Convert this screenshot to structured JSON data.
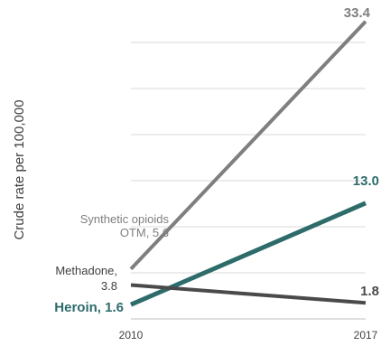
{
  "chart_data": {
    "type": "line",
    "x": [
      "2010",
      "2017"
    ],
    "ylabel": "Crude rate per 100,000",
    "ylim": [
      0,
      35
    ],
    "grid": true,
    "series": [
      {
        "name": "Synthetic opioids OTM",
        "values": [
          5.6,
          33.4
        ],
        "color": "#7f7f7f",
        "start_label": [
          "Synthetic opioids",
          "OTM, 5.6"
        ],
        "end_label": "33.4"
      },
      {
        "name": "Heroin",
        "values": [
          1.6,
          13.0
        ],
        "color": "#2e6b6b",
        "start_label": [
          "Heroin, 1.6"
        ],
        "end_label": "13.0"
      },
      {
        "name": "Methadone",
        "values": [
          3.8,
          1.8
        ],
        "color": "#4a4a4a",
        "start_label": [
          "Methadone,",
          "3.8"
        ],
        "end_label": "1.8"
      }
    ]
  }
}
